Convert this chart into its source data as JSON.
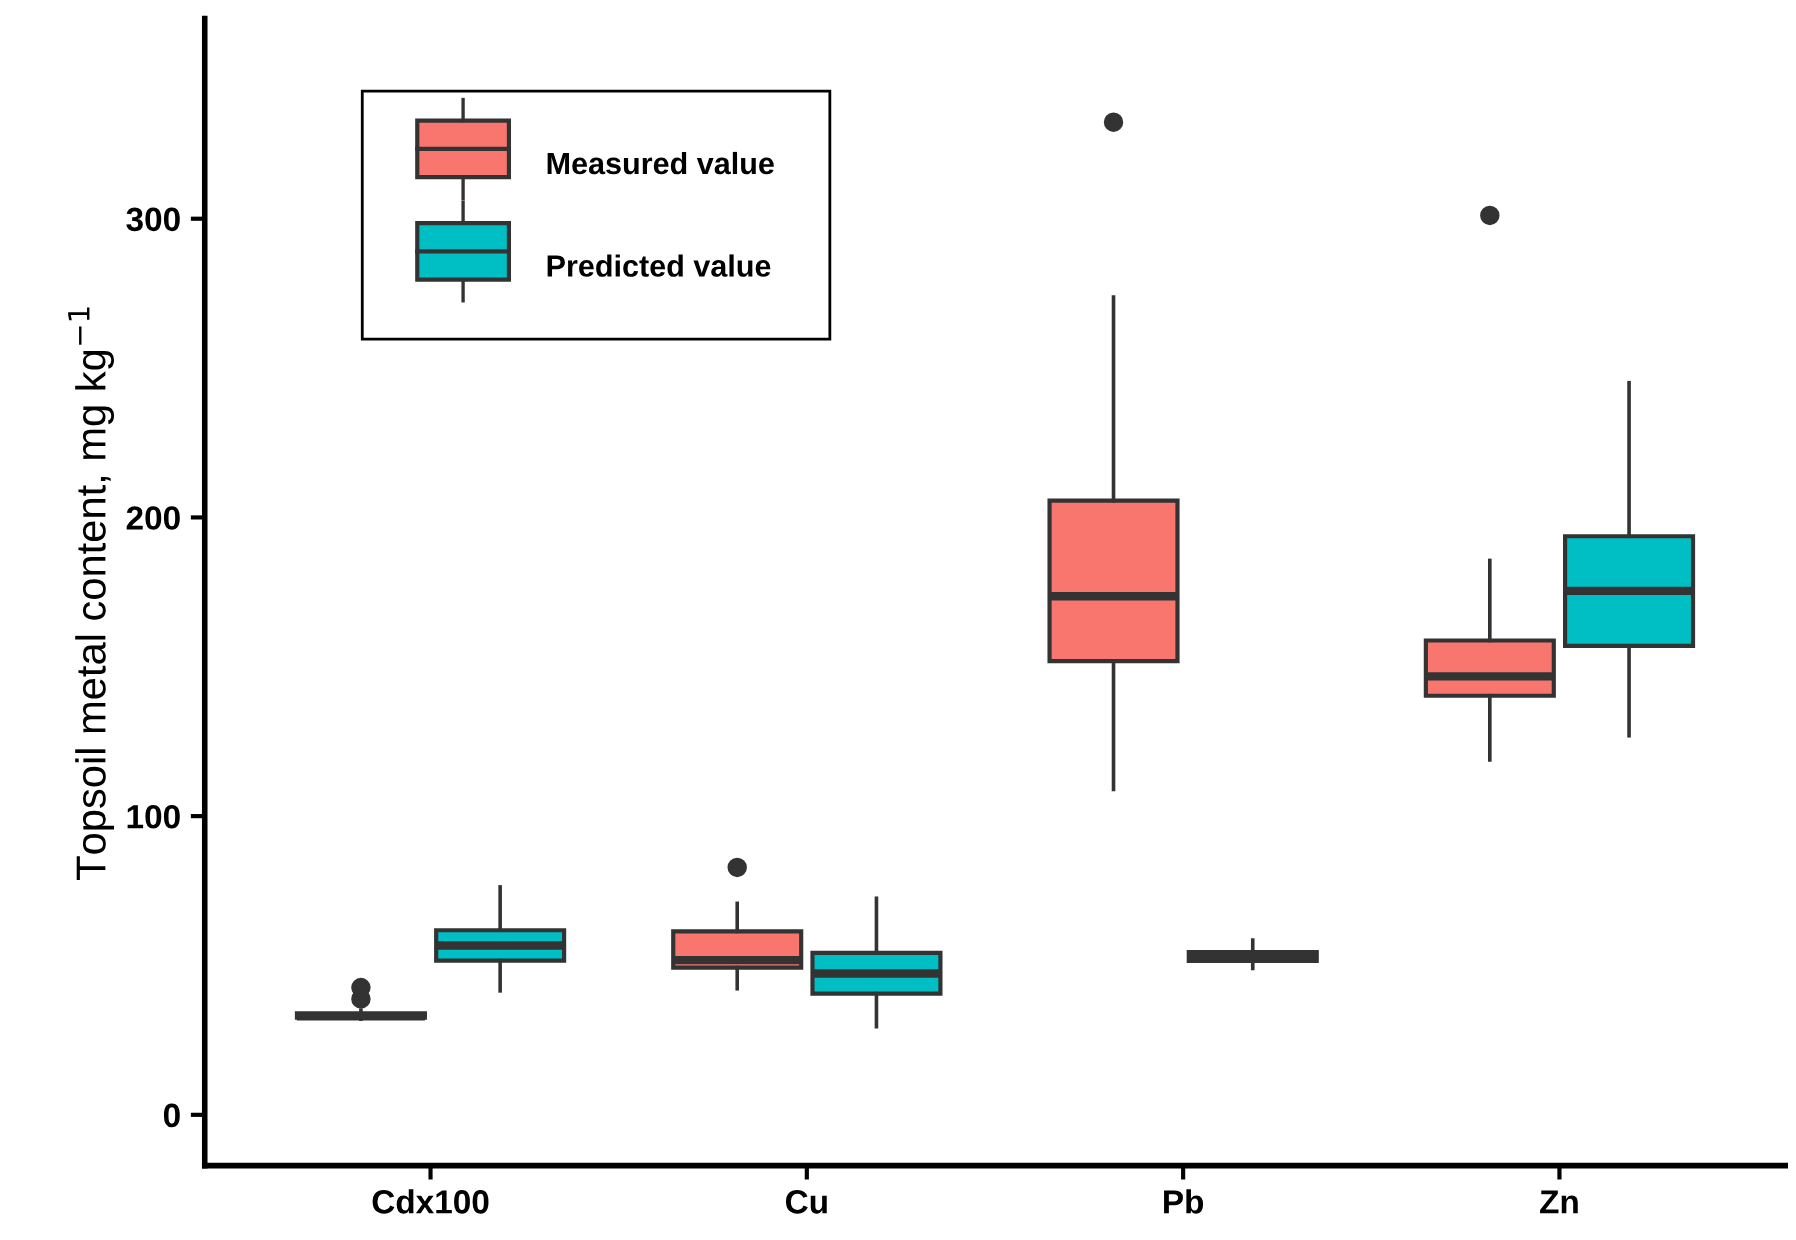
{
  "chart_data": {
    "type": "box",
    "ylabel": "Topsoil metal content, mg kg$^{−1}$",
    "categories": [
      "Cdx100",
      "Cu",
      "Pb",
      "Zn"
    ],
    "ylim": [
      -17,
      367
    ],
    "yticks": [
      0,
      100,
      200,
      300
    ],
    "grid": false,
    "legend": "top left",
    "series": [
      {
        "name": "Measured value",
        "color": "#f8766d",
        "boxes": [
          {
            "low": 32,
            "q1": 32.5,
            "median": 33,
            "q3": 34,
            "high": 35,
            "outliers": [
              38.8,
              42.6
            ]
          },
          {
            "low": 42.2,
            "q1": 49.3,
            "median": 51.8,
            "q3": 61.4,
            "high": 70.8,
            "outliers": [
              82.8
            ]
          },
          {
            "low": 108.9,
            "q1": 151.9,
            "median": 173.6,
            "q3": 205.6,
            "high": 273.8,
            "outliers": [
              332.3
            ]
          },
          {
            "low": 118.8,
            "q1": 140.3,
            "median": 146.8,
            "q3": 158.8,
            "high": 185.6,
            "outliers": [
              301.1
            ]
          }
        ]
      },
      {
        "name": "Predicted value",
        "color": "#00bfc4",
        "boxes": [
          {
            "low": 41.5,
            "q1": 51.6,
            "median": 56.7,
            "q3": 61.8,
            "high": 76.3
          },
          {
            "low": 29.5,
            "q1": 40.6,
            "median": 47.3,
            "q3": 54.2,
            "high": 72.5
          },
          {
            "low": 49,
            "q1": 51.5,
            "median": 53,
            "q3": 54.5,
            "high": 58.5
          },
          {
            "low": 126.9,
            "q1": 157,
            "median": 175.4,
            "q3": 193.7,
            "high": 245.1
          }
        ]
      }
    ]
  }
}
